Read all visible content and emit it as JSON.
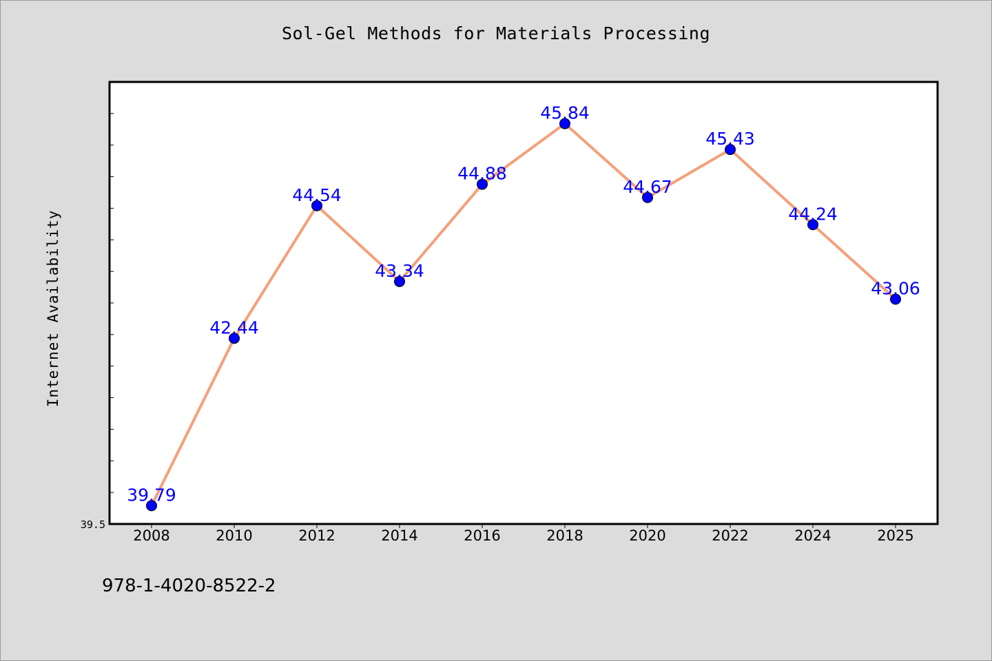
{
  "title": "Sol-Gel Methods for Materials Processing",
  "footer_code": "978-1-4020-8522-2",
  "colors": {
    "background": "#dcdcdc",
    "plot_background": "#ffffff",
    "line": "#f4a07a",
    "marker": "#0000ff",
    "data_label": "#0000ff"
  },
  "chart_data": {
    "type": "line",
    "title": "Sol-Gel Methods for Materials Processing",
    "xlabel": "",
    "ylabel": "Internet Availability",
    "categories": [
      "2008",
      "2010",
      "2012",
      "2014",
      "2016",
      "2018",
      "2020",
      "2022",
      "2024",
      "2025"
    ],
    "series": [
      {
        "values": [
          39.79,
          42.44,
          44.54,
          43.34,
          44.88,
          45.84,
          44.67,
          45.43,
          44.24,
          43.06
        ],
        "data_labels": [
          "39.79",
          "42.44",
          "44.54",
          "43.34",
          "44.88",
          "45.84",
          "44.67",
          "45.43",
          "44.24",
          "43.06"
        ]
      }
    ],
    "y_tick_labels": [
      "39.5"
    ],
    "ylim": [
      39.5,
      46.5
    ],
    "grid": false,
    "legend": "none",
    "markers": true
  }
}
